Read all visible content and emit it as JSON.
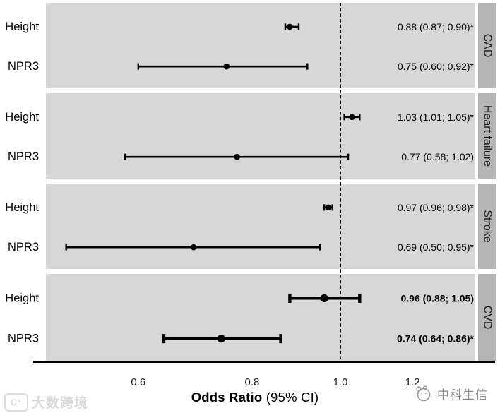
{
  "chart_data": {
    "type": "forest",
    "title": "",
    "xlabel_bold": "Odds Ratio",
    "xlabel_suffix": " (95% CI)",
    "x_scale": "log10",
    "xlim": [
      0.47,
      1.41
    ],
    "reference_line": 1.0,
    "grid": false,
    "x_ticks": [
      {
        "label": "0.6",
        "value": 0.6
      },
      {
        "label": "0.8",
        "value": 0.8
      },
      {
        "label": "1.0",
        "value": 1.0
      },
      {
        "label": "1.2",
        "value": 1.2
      }
    ],
    "panels": [
      {
        "label": "CAD",
        "bold": false,
        "rows": [
          {
            "name": "Height",
            "or": 0.88,
            "lo": 0.87,
            "hi": 0.9,
            "label": "0.88 (0.87; 0.90)*",
            "significant": true
          },
          {
            "name": "NPR3",
            "or": 0.75,
            "lo": 0.6,
            "hi": 0.92,
            "label": "0.75 (0.60; 0.92)*",
            "significant": true
          }
        ]
      },
      {
        "label": "Heart failure",
        "bold": false,
        "rows": [
          {
            "name": "Height",
            "or": 1.03,
            "lo": 1.01,
            "hi": 1.05,
            "label": "1.03 (1.01; 1.05)*",
            "significant": true
          },
          {
            "name": "NPR3",
            "or": 0.77,
            "lo": 0.58,
            "hi": 1.02,
            "label": "0.77 (0.58; 1.02)",
            "significant": false
          }
        ]
      },
      {
        "label": "Stroke",
        "bold": false,
        "rows": [
          {
            "name": "Height",
            "or": 0.97,
            "lo": 0.96,
            "hi": 0.98,
            "label": "0.97 (0.96; 0.98)*",
            "significant": true
          },
          {
            "name": "NPR3",
            "or": 0.69,
            "lo": 0.5,
            "hi": 0.95,
            "label": "0.69 (0.50; 0.95)*",
            "significant": true
          }
        ]
      },
      {
        "label": "CVD",
        "bold": true,
        "rows": [
          {
            "name": "Height",
            "or": 0.96,
            "lo": 0.88,
            "hi": 1.05,
            "label": "0.96 (0.88; 1.05)",
            "significant": false
          },
          {
            "name": "NPR3",
            "or": 0.74,
            "lo": 0.64,
            "hi": 0.86,
            "label": "0.74 (0.64; 0.86)*",
            "significant": true
          }
        ]
      }
    ],
    "colors": {
      "panel_bg": "#d7d7d7",
      "strip_bg": "#b5b5b5",
      "ink": "#000000"
    }
  },
  "watermarks": {
    "left": "大数跨境",
    "left_icon_text": "C°",
    "right": "中科生信"
  }
}
